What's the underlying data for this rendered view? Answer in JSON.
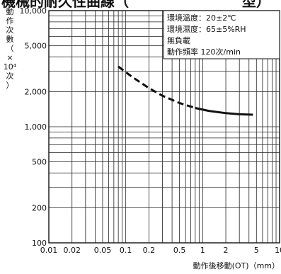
{
  "chart_data": {
    "type": "line",
    "title": "機械的耐久性曲線（　　　　　　　　型）",
    "xlabel": "動作後移動(OT)（mm）",
    "ylabel_chars": [
      "動",
      "作",
      "次",
      "數",
      "（",
      "×",
      "10⁴",
      "次",
      "）"
    ],
    "x_scale": "log",
    "y_scale": "log",
    "xlim": [
      0.01,
      10
    ],
    "ylim": [
      100,
      10000
    ],
    "x_ticks": [
      {
        "value": 0.01,
        "label": "0.01"
      },
      {
        "value": 0.02,
        "label": "0.02"
      },
      {
        "value": 0.05,
        "label": "0.05"
      },
      {
        "value": 0.1,
        "label": "0.1"
      },
      {
        "value": 0.2,
        "label": "0.2"
      },
      {
        "value": 0.5,
        "label": "0.5"
      },
      {
        "value": 1,
        "label": "1"
      },
      {
        "value": 2,
        "label": "2"
      },
      {
        "value": 5,
        "label": "5"
      },
      {
        "value": 10,
        "label": "10"
      }
    ],
    "y_ticks": [
      {
        "value": 100,
        "label": "100"
      },
      {
        "value": 200,
        "label": "200"
      },
      {
        "value": 500,
        "label": "500"
      },
      {
        "value": 1000,
        "label": "1,000"
      },
      {
        "value": 2000,
        "label": "2,000"
      },
      {
        "value": 5000,
        "label": "5,000"
      },
      {
        "value": 10000,
        "label": "10,000"
      }
    ],
    "grid": true,
    "legend_position": "top-right",
    "annotations": [
      "環境溫度：20±2℃",
      "環境濕度：65±5%RH",
      "無負載",
      "動作頻率 120次/min"
    ],
    "series": [
      {
        "style": "dashed",
        "x": [
          0.08,
          0.12,
          0.2,
          0.3,
          0.5,
          0.8
        ],
        "y": [
          3300,
          2700,
          2150,
          1850,
          1600,
          1450
        ]
      },
      {
        "style": "solid",
        "x": [
          0.8,
          1.2,
          2,
          3,
          4.5
        ],
        "y": [
          1450,
          1370,
          1310,
          1280,
          1270
        ]
      }
    ]
  }
}
